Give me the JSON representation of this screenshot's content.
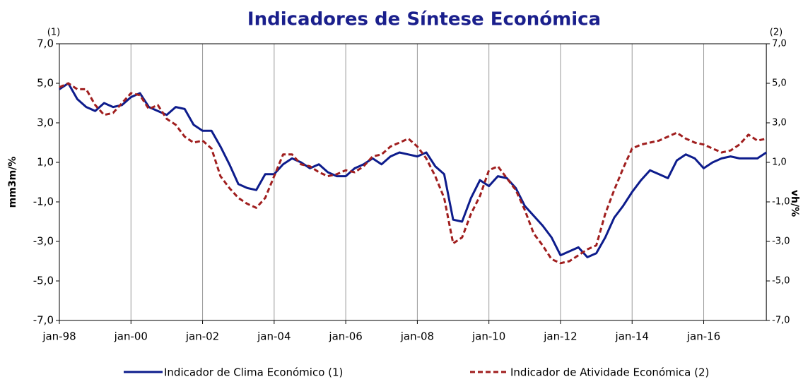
{
  "chart_data": {
    "type": "line",
    "title": "Indicadores de Síntese Económica",
    "y_label": "mm3m/%",
    "y2_label": "vh/%",
    "y_note": "(1)",
    "y2_note": "(2)",
    "categories": [
      "jan-98",
      null,
      null,
      null,
      null,
      null,
      null,
      null,
      "jan-00",
      null,
      null,
      null,
      null,
      null,
      null,
      null,
      "jan-02",
      null,
      null,
      null,
      null,
      null,
      null,
      null,
      "jan-04",
      null,
      null,
      null,
      null,
      null,
      null,
      null,
      "jan-06",
      null,
      null,
      null,
      null,
      null,
      null,
      null,
      "jan-08",
      null,
      null,
      null,
      null,
      null,
      null,
      null,
      "jan-10",
      null,
      null,
      null,
      null,
      null,
      null,
      null,
      "jan-12",
      null,
      null,
      null,
      null,
      null,
      null,
      null,
      "jan-14",
      null,
      null,
      null,
      null,
      null,
      null,
      null,
      "jan-16",
      null,
      null,
      null,
      null,
      null,
      null,
      null
    ],
    "series": [
      {
        "name": "Indicador de Clima Económico (1)",
        "color": "#0d1c8c",
        "dash": false,
        "axis": "y",
        "values": [
          4.7,
          5.0,
          4.2,
          3.8,
          3.6,
          4.0,
          3.8,
          3.9,
          4.3,
          4.5,
          3.8,
          3.6,
          3.4,
          3.8,
          3.7,
          2.9,
          2.6,
          2.6,
          1.8,
          0.9,
          -0.1,
          -0.3,
          -0.4,
          0.4,
          0.4,
          0.9,
          1.2,
          1.0,
          0.7,
          0.9,
          0.5,
          0.3,
          0.3,
          0.7,
          0.9,
          1.2,
          0.9,
          1.3,
          1.5,
          1.4,
          1.3,
          1.5,
          0.8,
          0.4,
          -1.9,
          -2.0,
          -0.8,
          0.1,
          -0.2,
          0.3,
          0.2,
          -0.3,
          -1.2,
          -1.7,
          -2.2,
          -2.8,
          -3.7,
          -3.5,
          -3.3,
          -3.8,
          -3.6,
          -2.8,
          -1.8,
          -1.2,
          -0.5,
          0.1,
          0.6,
          0.4,
          0.2,
          1.1,
          1.4,
          1.2,
          0.7,
          1.0,
          1.2,
          1.3,
          1.2,
          1.2,
          1.2,
          1.5
        ]
      },
      {
        "name": "Indicador de Atividade Económica (2)",
        "color": "#a01e1e",
        "dash": true,
        "axis": "y2",
        "values": [
          4.8,
          5.0,
          4.7,
          4.7,
          3.9,
          3.4,
          3.5,
          4.0,
          4.5,
          4.4,
          3.7,
          3.9,
          3.2,
          2.9,
          2.3,
          2.0,
          2.1,
          1.7,
          0.3,
          -0.3,
          -0.8,
          -1.1,
          -1.3,
          -0.8,
          0.3,
          1.4,
          1.4,
          0.9,
          0.8,
          0.5,
          0.3,
          0.4,
          0.6,
          0.5,
          0.8,
          1.3,
          1.4,
          1.8,
          2.0,
          2.2,
          1.8,
          1.2,
          0.3,
          -0.8,
          -3.1,
          -2.8,
          -1.6,
          -0.7,
          0.6,
          0.8,
          0.2,
          -0.4,
          -1.4,
          -2.6,
          -3.2,
          -3.9,
          -4.1,
          -4.0,
          -3.7,
          -3.4,
          -3.2,
          -1.6,
          -0.4,
          0.7,
          1.7,
          1.9,
          2.0,
          2.1,
          2.3,
          2.5,
          2.2,
          2.0,
          1.9,
          1.7,
          1.5,
          1.6,
          1.9,
          2.4,
          2.1,
          2.2
        ]
      }
    ],
    "ylim": [
      -7,
      7
    ],
    "yticks": [
      {
        "value": -7,
        "label": "-7,0"
      },
      {
        "value": -5,
        "label": "-5,0"
      },
      {
        "value": -3,
        "label": "-3,0"
      },
      {
        "value": -1,
        "label": "-1,0"
      },
      {
        "value": 1,
        "label": "1,0"
      },
      {
        "value": 3,
        "label": "3,0"
      },
      {
        "value": 5,
        "label": "5,0"
      },
      {
        "value": 7,
        "label": "7,0"
      }
    ],
    "y2lim": [
      -7,
      7
    ],
    "y2ticks": [
      {
        "value": -7,
        "label": "-7,0"
      },
      {
        "value": -5,
        "label": "-5,0"
      },
      {
        "value": -3,
        "label": "-3,0"
      },
      {
        "value": -1,
        "label": "-1,0"
      },
      {
        "value": 1,
        "label": "1,0"
      },
      {
        "value": 3,
        "label": "3,0"
      },
      {
        "value": 5,
        "label": "5,0"
      },
      {
        "value": 7,
        "label": "7,0"
      }
    ],
    "grid": true,
    "legend": "bottom"
  }
}
